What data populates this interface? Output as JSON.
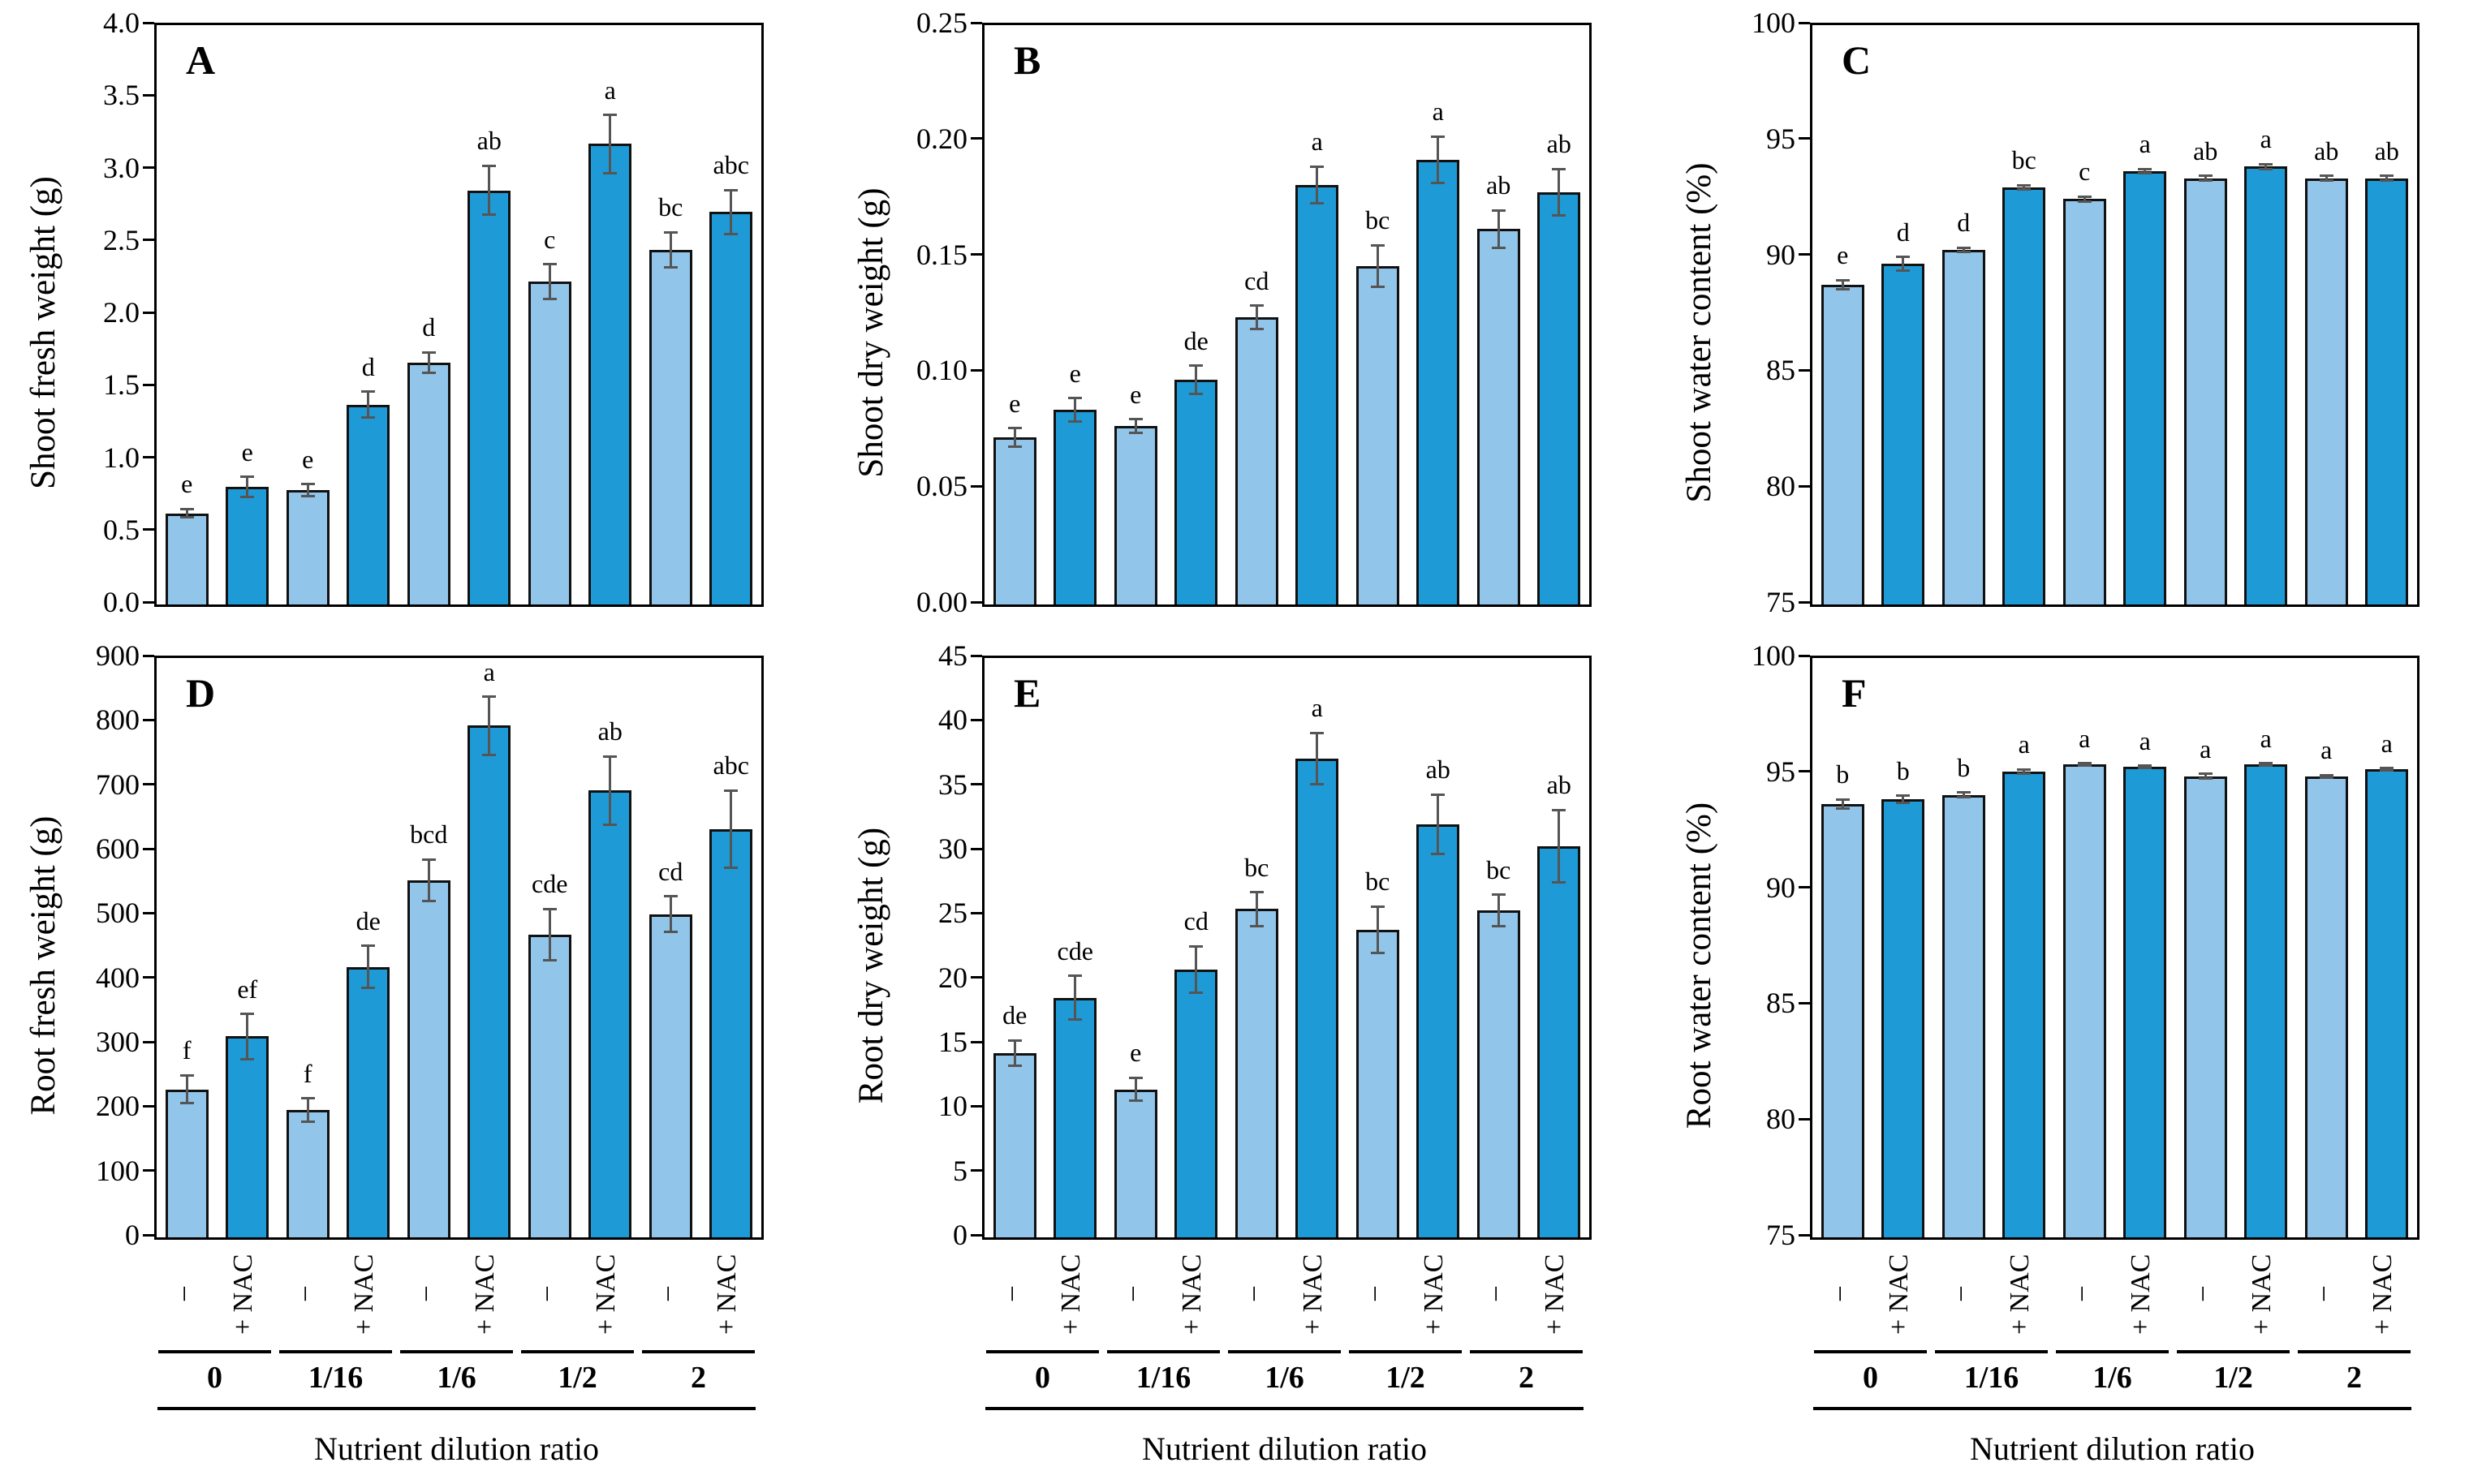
{
  "figure_title": "",
  "xlabel": "Nutrient dilution ratio",
  "chart_data": {
    "type": "bar",
    "layout": "2 rows x 3 columns, grouped bars with error bars and significance letters",
    "categories": [
      "0",
      "1/16",
      "1/6",
      "1/2",
      "2"
    ],
    "pair_labels": [
      "–",
      "+ NAC"
    ],
    "xlabel": "Nutrient dilution ratio",
    "colors": {
      "light_bar": "#92C5EA",
      "dark_bar": "#1E9BD7",
      "bar_border": "#111111",
      "error_bar": "#555555",
      "frame": "#000000",
      "background": "#ffffff"
    },
    "panels": [
      {
        "id": "A",
        "ylabel": "Shoot fresh weight (g)",
        "ylim": [
          0,
          4
        ],
        "yticks": [
          0,
          0.5,
          1,
          1.5,
          2,
          2.5,
          3,
          3.5,
          4
        ],
        "ytick_labels": [
          "0.0",
          "0.5",
          "1.0",
          "1.5",
          "2.0",
          "2.5",
          "3.0",
          "3.5",
          "4.0"
        ],
        "values": [
          0.63,
          0.81,
          0.79,
          1.38,
          1.67,
          2.86,
          2.23,
          3.18,
          2.45,
          2.71
        ],
        "errors": [
          0.03,
          0.07,
          0.04,
          0.09,
          0.07,
          0.17,
          0.12,
          0.2,
          0.12,
          0.15
        ],
        "letters": [
          "e",
          "e",
          "e",
          "d",
          "d",
          "ab",
          "c",
          "a",
          "bc",
          "abc"
        ]
      },
      {
        "id": "B",
        "ylabel": "Shoot dry weight (g)",
        "ylim": [
          0,
          0.25
        ],
        "yticks": [
          0,
          0.05,
          0.1,
          0.15,
          0.2,
          0.25
        ],
        "ytick_labels": [
          "0.00",
          "0.05",
          "0.10",
          "0.15",
          "0.20",
          "0.25"
        ],
        "values": [
          0.072,
          0.084,
          0.077,
          0.097,
          0.124,
          0.181,
          0.146,
          0.192,
          0.162,
          0.178
        ],
        "errors": [
          0.004,
          0.005,
          0.003,
          0.006,
          0.005,
          0.008,
          0.009,
          0.01,
          0.008,
          0.01
        ],
        "letters": [
          "e",
          "e",
          "e",
          "de",
          "cd",
          "a",
          "bc",
          "a",
          "ab",
          "ab"
        ]
      },
      {
        "id": "C",
        "ylabel": "Shoot water content (%)",
        "ylim": [
          75,
          100
        ],
        "yticks": [
          75,
          80,
          85,
          90,
          95,
          100
        ],
        "ytick_labels": [
          "75",
          "80",
          "85",
          "90",
          "95",
          "100"
        ],
        "values": [
          88.8,
          89.7,
          90.3,
          93.0,
          92.5,
          93.7,
          93.4,
          93.9,
          93.4,
          93.4
        ],
        "errors": [
          0.2,
          0.3,
          0.1,
          0.1,
          0.1,
          0.1,
          0.1,
          0.1,
          0.1,
          0.1
        ],
        "letters": [
          "e",
          "d",
          "d",
          "bc",
          "c",
          "a",
          "ab",
          "a",
          "ab",
          "ab"
        ]
      },
      {
        "id": "D",
        "ylabel": "Root fresh weight (g)",
        "ylim": [
          0,
          900
        ],
        "yticks": [
          0,
          100,
          200,
          300,
          400,
          500,
          600,
          700,
          800,
          900
        ],
        "ytick_labels": [
          "0",
          "100",
          "200",
          "300",
          "400",
          "500",
          "600",
          "700",
          "800",
          "900"
        ],
        "values": [
          230,
          312,
          198,
          420,
          555,
          795,
          470,
          694,
          502,
          634
        ],
        "errors": [
          22,
          35,
          18,
          33,
          32,
          45,
          40,
          53,
          28,
          60
        ],
        "letters": [
          "f",
          "ef",
          "f",
          "de",
          "bcd",
          "a",
          "cde",
          "ab",
          "cd",
          "abc"
        ]
      },
      {
        "id": "E",
        "ylabel": "Root dry weight (g)",
        "ylim": [
          0,
          45
        ],
        "yticks": [
          0,
          5,
          10,
          15,
          20,
          25,
          30,
          35,
          40,
          45
        ],
        "ytick_labels": [
          "0",
          "5",
          "10",
          "15",
          "20",
          "25",
          "30",
          "35",
          "40",
          "45"
        ],
        "values": [
          14.3,
          18.6,
          11.5,
          20.8,
          25.5,
          37.2,
          23.9,
          32.1,
          25.4,
          30.4
        ],
        "errors": [
          1.0,
          1.7,
          0.9,
          1.8,
          1.3,
          2.0,
          1.8,
          2.3,
          1.2,
          2.8
        ],
        "letters": [
          "de",
          "cde",
          "e",
          "cd",
          "bc",
          "a",
          "bc",
          "ab",
          "bc",
          "ab"
        ]
      },
      {
        "id": "F",
        "ylabel": "Root water content (%)",
        "ylim": [
          75,
          100
        ],
        "yticks": [
          75,
          80,
          85,
          90,
          95,
          100
        ],
        "ytick_labels": [
          "75",
          "80",
          "85",
          "90",
          "95",
          "100"
        ],
        "values": [
          93.7,
          93.9,
          94.1,
          95.1,
          95.4,
          95.3,
          94.9,
          95.4,
          94.9,
          95.2
        ],
        "errors": [
          0.2,
          0.15,
          0.1,
          0.1,
          0.05,
          0.05,
          0.1,
          0.05,
          0.05,
          0.05
        ],
        "letters": [
          "b",
          "b",
          "b",
          "a",
          "a",
          "a",
          "a",
          "a",
          "a",
          "a"
        ]
      }
    ]
  }
}
